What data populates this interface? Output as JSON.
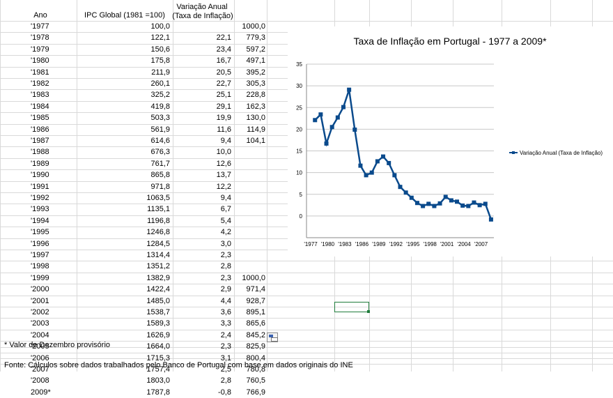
{
  "sheet": {
    "header": {
      "ano": "Ano",
      "ipc": "IPC Global (1981 =100)",
      "variacao_line1": "Variação Anual",
      "variacao_line2": "(Taxa de Inflação)"
    },
    "rows": [
      {
        "year": "'1977",
        "ipc": "100,0",
        "var": "",
        "idx": "1000,0"
      },
      {
        "year": "'1978",
        "ipc": "122,1",
        "var": "22,1",
        "idx": "779,3"
      },
      {
        "year": "'1979",
        "ipc": "150,6",
        "var": "23,4",
        "idx": "597,2"
      },
      {
        "year": "'1980",
        "ipc": "175,8",
        "var": "16,7",
        "idx": "497,1"
      },
      {
        "year": "'1981",
        "ipc": "211,9",
        "var": "20,5",
        "idx": "395,2"
      },
      {
        "year": "'1982",
        "ipc": "260,1",
        "var": "22,7",
        "idx": "305,3"
      },
      {
        "year": "'1983",
        "ipc": "325,2",
        "var": "25,1",
        "idx": "228,8"
      },
      {
        "year": "'1984",
        "ipc": "419,8",
        "var": "29,1",
        "idx": "162,3"
      },
      {
        "year": "'1985",
        "ipc": "503,3",
        "var": "19,9",
        "idx": "130,0"
      },
      {
        "year": "'1986",
        "ipc": "561,9",
        "var": "11,6",
        "idx": "114,9"
      },
      {
        "year": "'1987",
        "ipc": "614,6",
        "var": "9,4",
        "idx": "104,1"
      },
      {
        "year": "'1988",
        "ipc": "676,3",
        "var": "10,0",
        "idx": ""
      },
      {
        "year": "'1989",
        "ipc": "761,7",
        "var": "12,6",
        "idx": ""
      },
      {
        "year": "'1990",
        "ipc": "865,8",
        "var": "13,7",
        "idx": ""
      },
      {
        "year": "'1991",
        "ipc": "971,8",
        "var": "12,2",
        "idx": ""
      },
      {
        "year": "'1992",
        "ipc": "1063,5",
        "var": "9,4",
        "idx": ""
      },
      {
        "year": "'1993",
        "ipc": "1135,1",
        "var": "6,7",
        "idx": ""
      },
      {
        "year": "'1994",
        "ipc": "1196,8",
        "var": "5,4",
        "idx": ""
      },
      {
        "year": "'1995",
        "ipc": "1246,8",
        "var": "4,2",
        "idx": ""
      },
      {
        "year": "'1996",
        "ipc": "1284,5",
        "var": "3,0",
        "idx": ""
      },
      {
        "year": "'1997",
        "ipc": "1314,4",
        "var": "2,3",
        "idx": ""
      },
      {
        "year": "'1998",
        "ipc": "1351,2",
        "var": "2,8",
        "idx": ""
      },
      {
        "year": "'1999",
        "ipc": "1382,9",
        "var": "2,3",
        "idx": "1000,0"
      },
      {
        "year": "'2000",
        "ipc": "1422,4",
        "var": "2,9",
        "idx": "971,4"
      },
      {
        "year": "'2001",
        "ipc": "1485,0",
        "var": "4,4",
        "idx": "928,7"
      },
      {
        "year": "'2002",
        "ipc": "1538,7",
        "var": "3,6",
        "idx": "895,1"
      },
      {
        "year": "'2003",
        "ipc": "1589,3",
        "var": "3,3",
        "idx": "865,6"
      },
      {
        "year": "'2004",
        "ipc": "1626,9",
        "var": "2,4",
        "idx": "845,2"
      },
      {
        "year": "'2005",
        "ipc": "1664,0",
        "var": "2,3",
        "idx": "825,9"
      },
      {
        "year": "'2006",
        "ipc": "1715,3",
        "var": "3,1",
        "idx": "800,4"
      },
      {
        "year": "'2007",
        "ipc": "1757,4",
        "var": "2,5",
        "idx": "780,8"
      },
      {
        "year": "'2008",
        "ipc": "1803,0",
        "var": "2,8",
        "idx": "760,5"
      },
      {
        "year": "2009*",
        "ipc": "1787,8",
        "var": "-0,8",
        "idx": "766,9"
      }
    ],
    "footnote": "* Valor de Dezembro provisório",
    "source": "Fonte: Cálculos sobre dados trabalhados pelo Banco de Portugal com base em dados originais do INE"
  },
  "chart_data": {
    "type": "line",
    "title": "Taxa de Inflação em Portugal - 1977 a 2009*",
    "x_tick_labels": [
      "'1977",
      "'1980",
      "'1983",
      "'1986",
      "'1989",
      "'1992",
      "'1995",
      "'1998",
      "'2001",
      "'2004",
      "'2007"
    ],
    "x": [
      "'1978",
      "'1979",
      "'1980",
      "'1981",
      "'1982",
      "'1983",
      "'1984",
      "'1985",
      "'1986",
      "'1987",
      "'1988",
      "'1989",
      "'1990",
      "'1991",
      "'1992",
      "'1993",
      "'1994",
      "'1995",
      "'1996",
      "'1997",
      "'1998",
      "'1999",
      "'2000",
      "'2001",
      "'2002",
      "'2003",
      "'2004",
      "'2005",
      "'2006",
      "'2007",
      "'2008",
      "2009*"
    ],
    "series": [
      {
        "name": "Variação Anual (Taxa de Inflação)",
        "color": "#0a4a8c",
        "values": [
          22.1,
          23.4,
          16.7,
          20.5,
          22.7,
          25.1,
          29.1,
          19.9,
          11.6,
          9.4,
          10.0,
          12.6,
          13.7,
          12.2,
          9.4,
          6.7,
          5.4,
          4.2,
          3.0,
          2.3,
          2.8,
          2.3,
          2.9,
          4.4,
          3.6,
          3.3,
          2.4,
          2.3,
          3.1,
          2.5,
          2.8,
          -0.8
        ]
      }
    ],
    "y_ticks": [
      "35",
      "30",
      "25",
      "20",
      "15",
      "10",
      "5",
      "0"
    ],
    "ylim": [
      -1,
      35
    ],
    "grid": true,
    "legend": "right"
  }
}
